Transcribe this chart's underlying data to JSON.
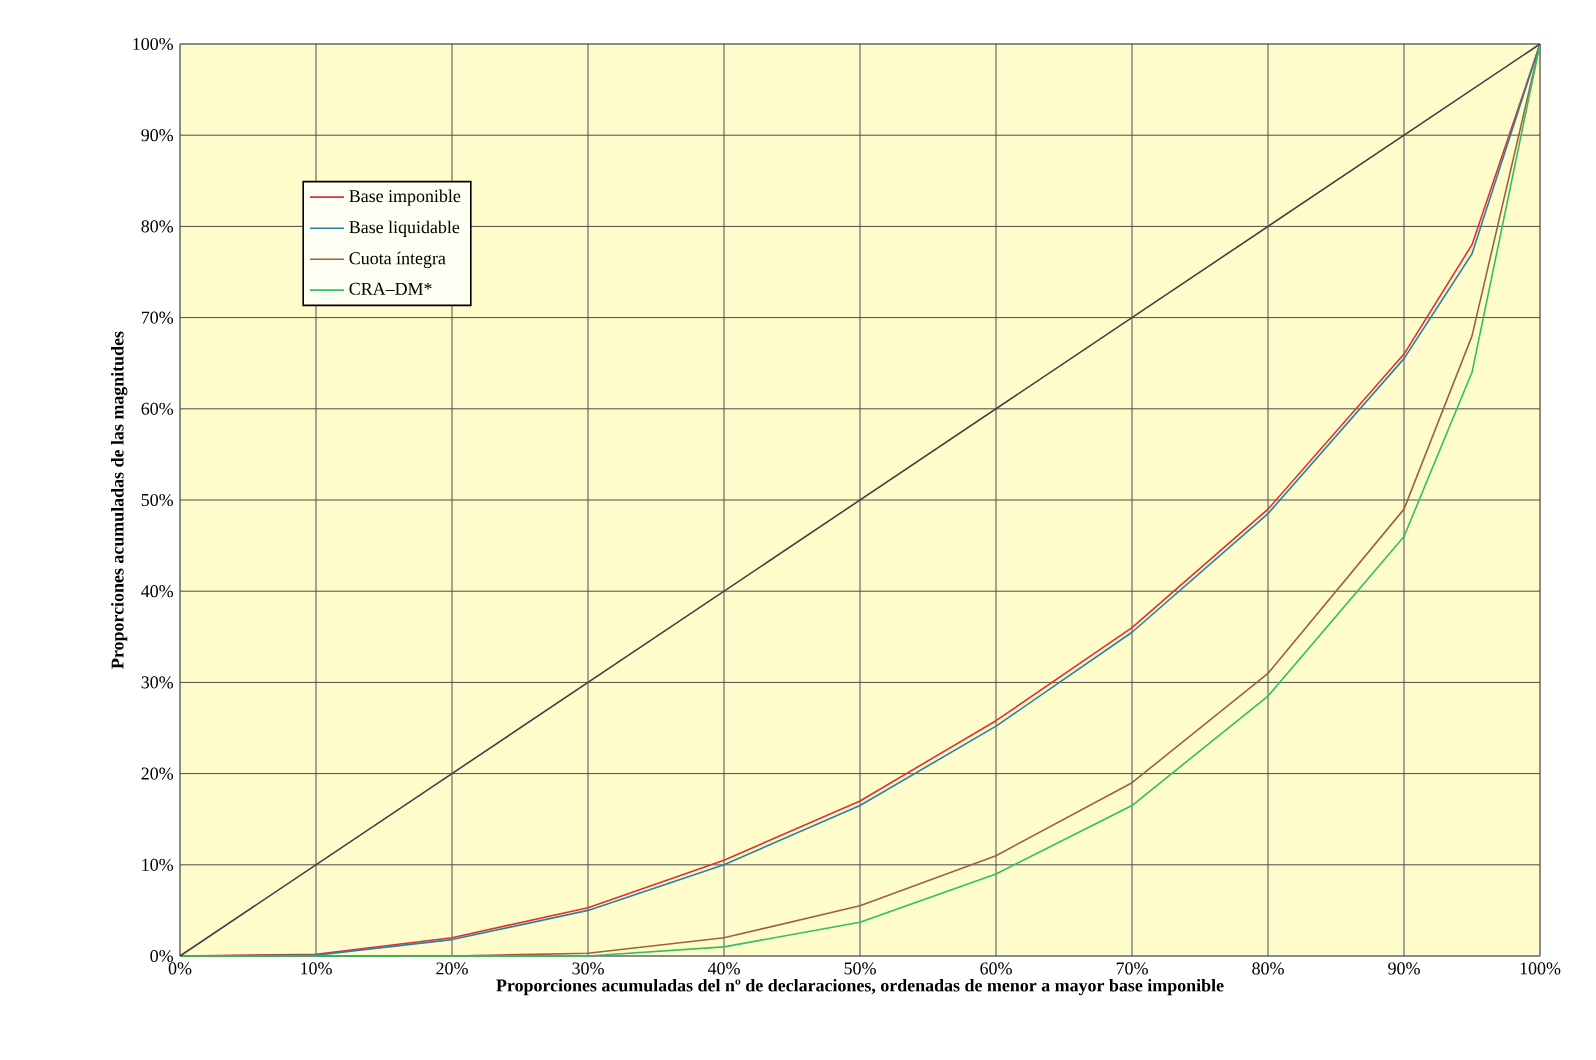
{
  "chart_data": {
    "type": "line",
    "xlabel": "Proporciones acumuladas del nº de declaraciones, ordenadas de menor a mayor base imponible",
    "ylabel": "Proporciones acumuladas de las magnitudes",
    "x": [
      0,
      10,
      20,
      30,
      40,
      50,
      60,
      70,
      80,
      90,
      95,
      100
    ],
    "series": [
      {
        "name": "Base imponible",
        "color": "#e03030",
        "values": [
          0,
          0.2,
          2,
          5.3,
          10.5,
          17,
          25.8,
          36,
          49,
          66,
          78,
          100
        ]
      },
      {
        "name": "Base liquidable",
        "color": "#2f7f9f",
        "values": [
          0,
          0.1,
          1.8,
          5,
          10,
          16.5,
          25.2,
          35.5,
          48.5,
          65.5,
          77,
          100
        ]
      },
      {
        "name": "Cuota íntegra",
        "color": "#a06040",
        "values": [
          0,
          0,
          0,
          0.3,
          2,
          5.5,
          11,
          19,
          31,
          49,
          68,
          100
        ]
      },
      {
        "name": "CRA–DM*",
        "color": "#30c060",
        "values": [
          0,
          0,
          0,
          0,
          1,
          3.7,
          9,
          16.5,
          28.5,
          46,
          64,
          100
        ]
      },
      {
        "color": "#404040",
        "x": [
          0,
          100
        ],
        "values": [
          0,
          100
        ]
      }
    ],
    "xlim": [
      0,
      100
    ],
    "ylim": [
      0,
      100
    ],
    "xticks": [
      {
        "value": 0,
        "label": "0%"
      },
      {
        "value": 10,
        "label": "10%"
      },
      {
        "value": 20,
        "label": "20%"
      },
      {
        "value": 30,
        "label": "30%"
      },
      {
        "value": 40,
        "label": "40%"
      },
      {
        "value": 50,
        "label": "50%"
      },
      {
        "value": 60,
        "label": "60%"
      },
      {
        "value": 70,
        "label": "70%"
      },
      {
        "value": 80,
        "label": "80%"
      },
      {
        "value": 90,
        "label": "90%"
      },
      {
        "value": 100,
        "label": "100%"
      }
    ],
    "yticks": [
      {
        "value": 0,
        "label": "0%"
      },
      {
        "value": 10,
        "label": "10%"
      },
      {
        "value": 20,
        "label": "20%"
      },
      {
        "value": 30,
        "label": "30%"
      },
      {
        "value": 40,
        "label": "40%"
      },
      {
        "value": 50,
        "label": "50%"
      },
      {
        "value": 60,
        "label": "60%"
      },
      {
        "value": 70,
        "label": "70%"
      },
      {
        "value": 80,
        "label": "80%"
      },
      {
        "value": 90,
        "label": "90%"
      },
      {
        "value": 100,
        "label": "100%"
      }
    ],
    "grid": true,
    "legend": "top left",
    "marker": "none",
    "line_style": "solid"
  }
}
